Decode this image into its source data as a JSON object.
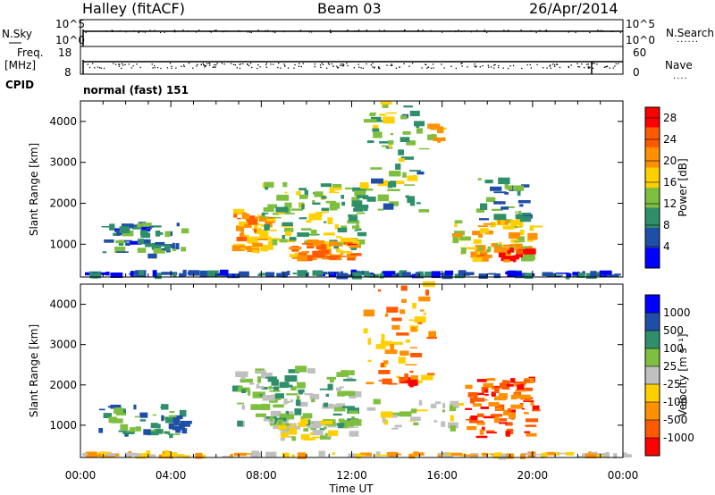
{
  "header": {
    "station": "Halley (fitACF)",
    "beam": "Beam 03",
    "date": "26/Apr/2014"
  },
  "strips": {
    "nsky_label": "N.Sky",
    "nsky_ticks": [
      "10^5",
      "10^0"
    ],
    "nsearch_label": "N.Search",
    "nsearch_ticks": [
      "10^5",
      "10^0"
    ],
    "freq_label_1": "Freq.",
    "freq_label_2": "[MHz]",
    "freq_ticks": [
      "18",
      "8"
    ],
    "nave_label": "Nave",
    "nave_ticks": [
      "60",
      "0"
    ],
    "cpid_label": "CPID",
    "cpid_value": "normal (fast) 151"
  },
  "colors": {
    "power_scale": [
      "#0000ff",
      "#1f4ea8",
      "#2f8f6a",
      "#7fbf3f",
      "#ffd000",
      "#ff9000",
      "#ff5a00",
      "#ff0000"
    ],
    "velocity_scale": [
      "#0000ff",
      "#1f4ea8",
      "#2f8f6a",
      "#7fbf3f",
      "#c0c0c0",
      "#ffd000",
      "#ff9000",
      "#ff5a00",
      "#ff0000"
    ]
  },
  "chart_data": [
    {
      "type": "heatmap",
      "name": "power",
      "ylabel": "Slant Range [km]",
      "xlim": [
        0,
        24
      ],
      "ylim": [
        200,
        4500
      ],
      "yticks": [
        "1000",
        "2000",
        "3000",
        "4000"
      ],
      "colorbar": {
        "label": "Power [dB]",
        "ticks": [
          "4",
          "8",
          "12",
          "16",
          "20",
          "24",
          "28"
        ],
        "range": [
          0,
          30
        ]
      },
      "regions": [
        {
          "t0": 0.6,
          "t1": 4.5,
          "r0": 700,
          "r1": 1500,
          "level": 8,
          "n": 55
        },
        {
          "t0": 6.7,
          "t1": 8.2,
          "r0": 800,
          "r1": 1800,
          "level": 20,
          "n": 50
        },
        {
          "t0": 8.0,
          "t1": 12.5,
          "r0": 900,
          "r1": 2500,
          "level": 13,
          "n": 110
        },
        {
          "t0": 9.2,
          "t1": 12.0,
          "r0": 650,
          "r1": 1050,
          "level": 22,
          "n": 50
        },
        {
          "t0": 12.5,
          "t1": 15.0,
          "r0": 1800,
          "r1": 4500,
          "level": 12,
          "n": 60
        },
        {
          "t0": 16.4,
          "t1": 20.0,
          "r0": 600,
          "r1": 1600,
          "level": 18,
          "n": 80
        },
        {
          "t0": 18.5,
          "t1": 19.7,
          "r0": 600,
          "r1": 900,
          "level": 26,
          "n": 18
        },
        {
          "t0": 17.5,
          "t1": 19.6,
          "r0": 1600,
          "r1": 2600,
          "level": 10,
          "n": 30
        },
        {
          "t0": 15.3,
          "t1": 15.8,
          "r0": 3500,
          "r1": 3900,
          "level": 18,
          "n": 8
        },
        {
          "t0": 0.0,
          "t1": 24.0,
          "r0": 220,
          "r1": 300,
          "level": 6,
          "n": 120
        }
      ]
    },
    {
      "type": "heatmap",
      "name": "velocity",
      "ylabel": "Slant Range [km]",
      "xlabel": "Time UT",
      "xticks": [
        "00:00",
        "04:00",
        "08:00",
        "12:00",
        "16:00",
        "20:00",
        "00:00"
      ],
      "xlim": [
        0,
        24
      ],
      "ylim": [
        200,
        4500
      ],
      "yticks": [
        "1000",
        "2000",
        "3000",
        "4000"
      ],
      "colorbar": {
        "label": "Velocity [m s⁻¹]",
        "ticks": [
          "1000",
          "500",
          "100",
          "25",
          "-25",
          "-100",
          "-500",
          "-1000"
        ]
      },
      "regions": [
        {
          "t0": 0.6,
          "t1": 4.5,
          "r0": 700,
          "r1": 1500,
          "level": 2,
          "n": 55
        },
        {
          "t0": 6.7,
          "t1": 12.0,
          "r0": 900,
          "r1": 2400,
          "level": 3,
          "n": 120
        },
        {
          "t0": 8.5,
          "t1": 12.0,
          "r0": 650,
          "r1": 1100,
          "level": 4,
          "n": 45
        },
        {
          "t0": 12.5,
          "t1": 15.5,
          "r0": 2000,
          "r1": 4500,
          "level": 6,
          "n": 55
        },
        {
          "t0": 17.0,
          "t1": 20.0,
          "r0": 700,
          "r1": 2200,
          "level": 7,
          "n": 85
        },
        {
          "t0": 14.0,
          "t1": 14.6,
          "r0": 1900,
          "r1": 2200,
          "level": 8,
          "n": 6
        },
        {
          "t0": 12.5,
          "t1": 16.5,
          "r0": 900,
          "r1": 1600,
          "level": 4,
          "n": 30
        },
        {
          "t0": 0.0,
          "t1": 24.0,
          "r0": 220,
          "r1": 300,
          "level": 5,
          "n": 100
        }
      ]
    }
  ]
}
